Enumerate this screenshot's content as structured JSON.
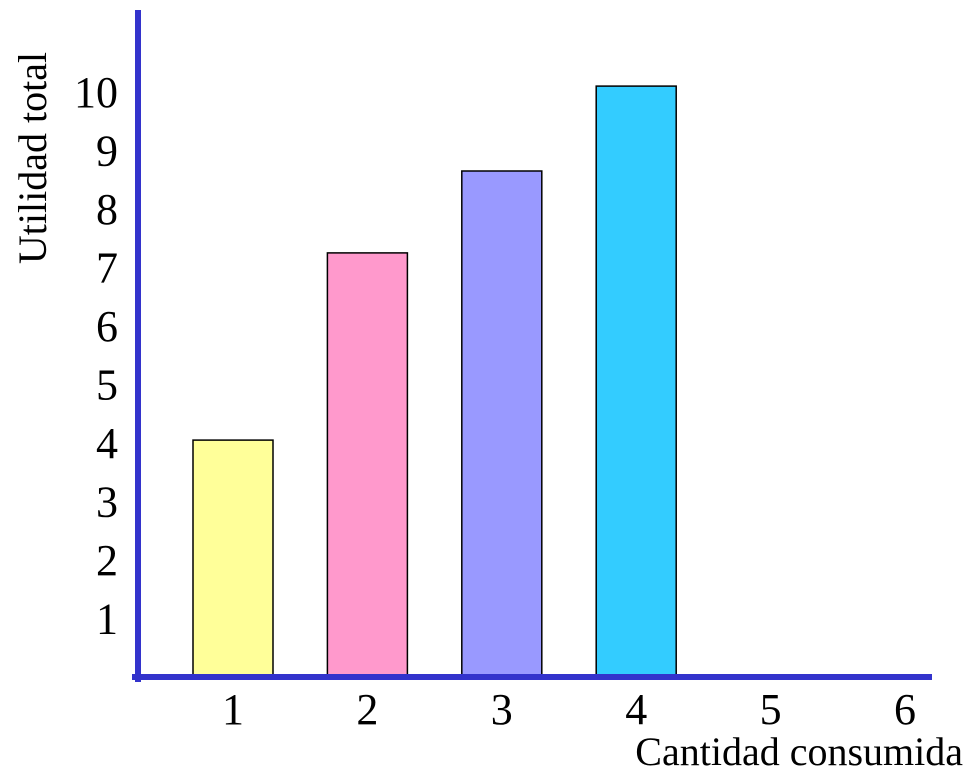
{
  "chart_data": {
    "type": "bar",
    "categories": [
      "1",
      "2",
      "3",
      "4"
    ],
    "values": [
      4.05,
      7.25,
      8.65,
      10.1
    ],
    "bar_colors": [
      "#ffff99",
      "#ff99cc",
      "#9999ff",
      "#33ccff"
    ],
    "xlabel": "Cantidad consumida",
    "ylabel": "Utilidad total",
    "x_ticks": [
      "1",
      "2",
      "3",
      "4",
      "5",
      "6"
    ],
    "y_ticks": [
      "1",
      "2",
      "3",
      "4",
      "5",
      "6",
      "7",
      "8",
      "9",
      "10"
    ],
    "ylim": [
      0,
      11
    ],
    "axis_color": "#3333cc",
    "grid": false
  }
}
